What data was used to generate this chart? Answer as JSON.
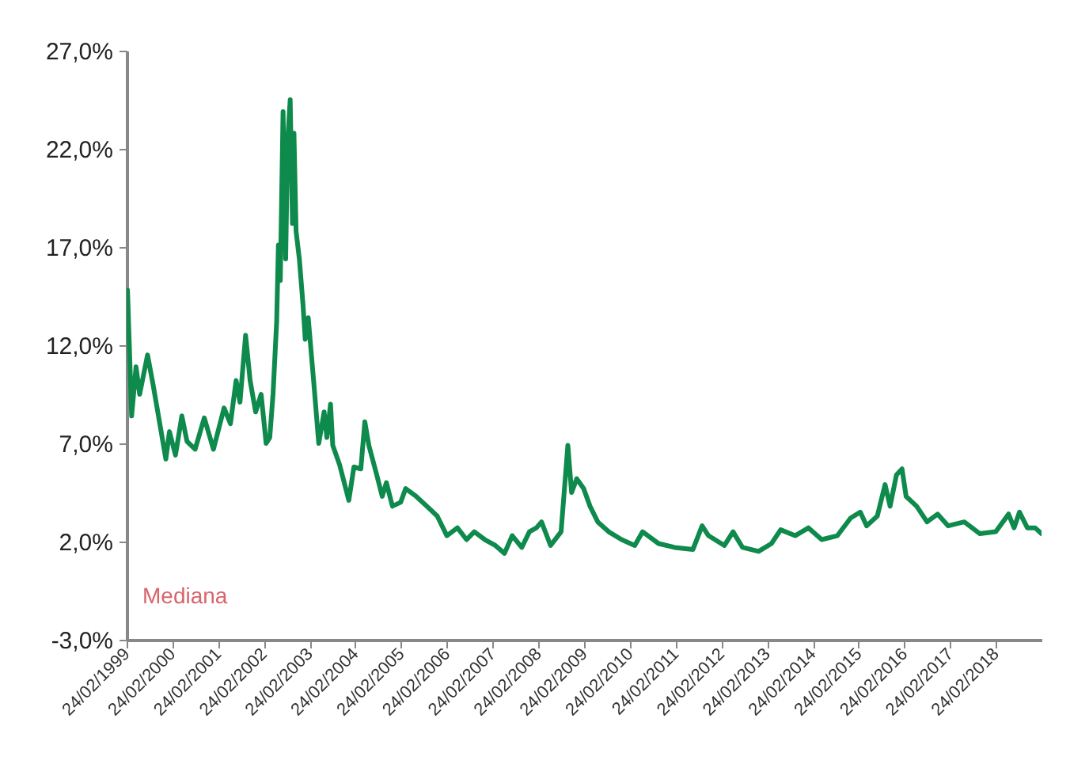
{
  "chart_data": {
    "type": "line",
    "xlim": [
      "1999-02-24",
      "2019-02-24"
    ],
    "xticks": [
      {
        "value": "1999-02-24",
        "label": "24/02/1999"
      },
      {
        "value": "2000-02-24",
        "label": "24/02/2000"
      },
      {
        "value": "2001-02-24",
        "label": "24/02/2001"
      },
      {
        "value": "2002-02-24",
        "label": "24/02/2002"
      },
      {
        "value": "2003-02-24",
        "label": "24/02/2003"
      },
      {
        "value": "2004-02-24",
        "label": "24/02/2004"
      },
      {
        "value": "2005-02-24",
        "label": "24/02/2005"
      },
      {
        "value": "2006-02-24",
        "label": "24/02/2006"
      },
      {
        "value": "2007-02-24",
        "label": "24/02/2007"
      },
      {
        "value": "2008-02-24",
        "label": "24/02/2008"
      },
      {
        "value": "2009-02-24",
        "label": "24/02/2009"
      },
      {
        "value": "2010-02-24",
        "label": "24/02/2010"
      },
      {
        "value": "2011-02-24",
        "label": "24/02/2011"
      },
      {
        "value": "2012-02-24",
        "label": "24/02/2012"
      },
      {
        "value": "2013-02-24",
        "label": "24/02/2013"
      },
      {
        "value": "2014-02-24",
        "label": "24/02/2014"
      },
      {
        "value": "2015-02-24",
        "label": "24/02/2015"
      },
      {
        "value": "2016-02-24",
        "label": "24/02/2016"
      },
      {
        "value": "2017-02-24",
        "label": "24/02/2017"
      },
      {
        "value": "2018-02-24",
        "label": "24/02/2018"
      }
    ],
    "ylim": [
      -3,
      27
    ],
    "yticks": [
      {
        "value": -3,
        "label": "-3,0%"
      },
      {
        "value": 2,
        "label": "2,0%"
      },
      {
        "value": 7,
        "label": "7,0%"
      },
      {
        "value": 12,
        "label": "12,0%"
      },
      {
        "value": 17,
        "label": "17,0%"
      },
      {
        "value": 22,
        "label": "22,0%"
      },
      {
        "value": 27,
        "label": "27,0%"
      }
    ],
    "grid": false,
    "x": [
      "1999-03-03",
      "1999-03-17",
      "1999-04-05",
      "1999-05-10",
      "1999-06-08",
      "1999-08-10",
      "1999-09-23",
      "1999-11-24",
      "2000-01-03",
      "2000-02-01",
      "2000-03-20",
      "2000-05-10",
      "2000-06-20",
      "2000-08-24",
      "2000-11-05",
      "2001-01-17",
      "2001-04-12",
      "2001-06-02",
      "2001-07-17",
      "2001-08-17",
      "2001-10-01",
      "2001-11-06",
      "2001-12-20",
      "2002-02-02",
      "2002-03-14",
      "2002-04-12",
      "2002-05-08",
      "2002-06-06",
      "2002-06-20",
      "2002-07-05",
      "2002-07-27",
      "2002-08-17",
      "2002-09-01",
      "2002-09-22",
      "2002-10-10",
      "2002-10-22",
      "2002-11-08",
      "2002-12-04",
      "2003-01-02",
      "2003-01-20",
      "2003-02-13",
      "2003-03-28",
      "2003-05-08",
      "2003-06-20",
      "2003-07-12",
      "2003-08-10",
      "2003-08-28",
      "2003-10-22",
      "2004-01-03",
      "2004-02-13",
      "2004-04-08",
      "2004-05-10",
      "2004-06-11",
      "2004-08-13",
      "2004-09-26",
      "2004-10-29",
      "2004-12-16",
      "2005-02-20",
      "2005-04-01",
      "2005-06-24",
      "2005-09-17",
      "2005-12-09",
      "2006-02-24",
      "2006-05-19",
      "2006-07-31",
      "2006-10-01",
      "2006-12-24",
      "2007-03-18",
      "2007-05-30",
      "2007-07-31",
      "2007-10-15",
      "2007-12-15",
      "2008-02-09",
      "2008-03-21",
      "2008-06-01",
      "2008-08-24",
      "2008-10-17",
      "2008-11-16",
      "2008-12-27",
      "2009-02-20",
      "2009-04-12",
      "2009-06-13",
      "2009-09-08",
      "2009-12-20",
      "2010-04-04",
      "2010-06-06",
      "2010-10-11",
      "2011-02-17",
      "2011-07-13",
      "2011-09-24",
      "2011-11-14",
      "2012-03-20",
      "2012-05-28",
      "2012-08-12",
      "2012-12-18",
      "2013-03-31",
      "2013-06-12",
      "2013-10-06",
      "2014-01-20",
      "2014-05-06",
      "2014-09-08",
      "2014-12-23",
      "2015-03-10",
      "2015-04-30",
      "2015-07-24",
      "2015-09-24",
      "2015-11-03",
      "2015-12-24",
      "2016-02-06",
      "2016-03-10",
      "2016-06-02",
      "2016-08-24",
      "2016-11-16",
      "2017-02-09",
      "2017-06-17",
      "2017-10-20",
      "2018-02-24",
      "2018-06-06",
      "2018-07-20",
      "2018-09-01",
      "2018-11-03",
      "2019-01-04",
      "2019-02-24"
    ],
    "series": [
      {
        "name": "Mediana",
        "color": "#0f8a4d",
        "values": [
          14.8,
          12.1,
          8.4,
          10.9,
          9.5,
          11.5,
          10.0,
          7.7,
          6.2,
          7.6,
          6.4,
          8.4,
          7.1,
          6.7,
          8.3,
          6.7,
          8.8,
          8.0,
          10.2,
          9.1,
          12.5,
          10.2,
          8.6,
          9.5,
          7.0,
          7.3,
          9.5,
          13.2,
          17.1,
          15.3,
          23.9,
          16.4,
          22.3,
          24.5,
          18.2,
          22.8,
          17.8,
          16.4,
          14.1,
          12.3,
          13.4,
          10.2,
          7.0,
          8.6,
          7.3,
          9.0,
          6.9,
          5.9,
          4.1,
          5.8,
          5.7,
          8.1,
          6.9,
          5.4,
          4.3,
          5.0,
          3.8,
          4.0,
          4.7,
          4.3,
          3.8,
          3.3,
          2.3,
          2.7,
          2.1,
          2.5,
          2.1,
          1.8,
          1.4,
          2.3,
          1.7,
          2.5,
          2.7,
          3.0,
          1.8,
          2.5,
          6.9,
          4.5,
          5.2,
          4.7,
          3.8,
          3.0,
          2.5,
          2.1,
          1.8,
          2.5,
          1.9,
          1.7,
          1.6,
          2.8,
          2.3,
          1.8,
          2.5,
          1.7,
          1.5,
          1.9,
          2.6,
          2.3,
          2.7,
          2.1,
          2.3,
          3.2,
          3.5,
          2.8,
          3.3,
          4.9,
          3.8,
          5.4,
          5.7,
          4.3,
          3.8,
          3.0,
          3.4,
          2.8,
          3.0,
          2.4,
          2.5,
          3.4,
          2.7,
          3.5,
          2.7,
          2.7,
          2.4
        ]
      }
    ]
  }
}
